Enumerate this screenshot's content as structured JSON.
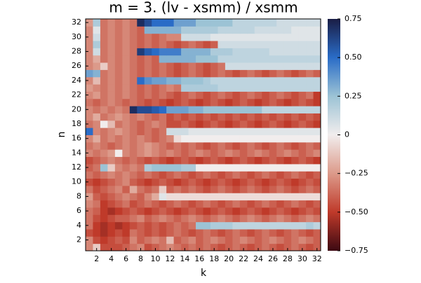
{
  "chart_data": {
    "type": "heatmap",
    "title": "m = 3. (lv - xsmm) / xsmm",
    "x_label": "k",
    "y_label": "n",
    "xlim": [
      0.5,
      32.5
    ],
    "ylim": [
      0.5,
      32.5
    ],
    "xticks": [
      2,
      4,
      6,
      8,
      10,
      12,
      14,
      16,
      18,
      20,
      22,
      24,
      26,
      28,
      30,
      32
    ],
    "yticks": [
      2,
      4,
      6,
      8,
      10,
      12,
      14,
      16,
      18,
      20,
      22,
      24,
      26,
      28,
      30,
      32
    ],
    "clim": [
      -0.75,
      0.75
    ],
    "cticks": [
      {
        "value": -0.75,
        "label": "−0.75"
      },
      {
        "value": -0.5,
        "label": "−0.50"
      },
      {
        "value": -0.25,
        "label": "−0.25"
      },
      0,
      0.25,
      {
        "value": 0.5,
        "label": "0.50"
      },
      0.75
    ],
    "colorscale": [
      "#3c0912",
      "#bf3a2a",
      "#dc9a8a",
      "#f1eded",
      "#9cc3d5",
      "#2a6cc7",
      "#1a1d45"
    ],
    "z": [
      [
        -0.3,
        -0.1,
        -0.45,
        -0.45,
        -0.45,
        -0.4,
        -0.35,
        -0.3,
        -0.45,
        -0.4,
        -0.35,
        -0.3,
        -0.35,
        -0.4,
        -0.35,
        -0.4,
        -0.35,
        -0.4,
        -0.45,
        -0.4,
        -0.35,
        -0.4,
        -0.45,
        -0.4,
        -0.35,
        -0.4,
        -0.45,
        -0.4,
        -0.35,
        -0.4,
        -0.45,
        -0.4
      ],
      [
        -0.3,
        -0.45,
        -0.5,
        -0.45,
        -0.4,
        -0.45,
        -0.3,
        -0.4,
        -0.35,
        -0.3,
        -0.35,
        -0.15,
        -0.4,
        -0.35,
        -0.3,
        -0.4,
        -0.35,
        -0.3,
        -0.35,
        -0.4,
        -0.35,
        -0.3,
        -0.35,
        -0.4,
        -0.35,
        -0.3,
        -0.35,
        -0.4,
        -0.35,
        -0.3,
        -0.35,
        -0.4
      ],
      [
        -0.45,
        -0.5,
        -0.55,
        -0.5,
        -0.45,
        -0.5,
        -0.35,
        -0.4,
        -0.45,
        -0.4,
        -0.45,
        -0.4,
        -0.35,
        -0.4,
        -0.45,
        -0.4,
        -0.35,
        -0.4,
        -0.45,
        -0.4,
        -0.35,
        -0.4,
        -0.45,
        -0.4,
        -0.35,
        -0.4,
        -0.45,
        -0.4,
        -0.35,
        -0.4,
        -0.45,
        -0.4
      ],
      [
        -0.35,
        -0.5,
        -0.55,
        -0.5,
        -0.55,
        -0.5,
        -0.45,
        -0.4,
        -0.45,
        -0.4,
        -0.45,
        -0.4,
        -0.35,
        -0.4,
        -0.35,
        0.25,
        0.25,
        0.2,
        0.2,
        0.2,
        0.15,
        0.15,
        0.15,
        0.15,
        0.15,
        0.15,
        0.15,
        0.15,
        0.15,
        0.15,
        0.2,
        0.15
      ],
      [
        -0.35,
        -0.45,
        -0.5,
        -0.45,
        -0.4,
        -0.4,
        -0.35,
        -0.3,
        -0.4,
        -0.35,
        -0.3,
        -0.35,
        -0.4,
        -0.35,
        -0.3,
        -0.35,
        -0.4,
        -0.35,
        -0.3,
        -0.35,
        -0.4,
        -0.35,
        -0.3,
        -0.35,
        -0.4,
        -0.35,
        -0.3,
        -0.35,
        -0.4,
        -0.35,
        -0.3,
        -0.35
      ],
      [
        -0.35,
        -0.4,
        -0.5,
        -0.55,
        -0.5,
        -0.45,
        -0.4,
        -0.45,
        -0.5,
        -0.45,
        -0.4,
        -0.45,
        -0.5,
        -0.45,
        -0.4,
        -0.45,
        -0.5,
        -0.45,
        -0.4,
        -0.45,
        -0.5,
        -0.45,
        -0.4,
        -0.45,
        -0.5,
        -0.45,
        -0.4,
        -0.45,
        -0.5,
        -0.45,
        -0.4,
        -0.45
      ],
      [
        -0.3,
        -0.35,
        -0.5,
        -0.45,
        -0.4,
        -0.35,
        -0.45,
        -0.4,
        -0.35,
        -0.4,
        -0.45,
        -0.4,
        -0.35,
        -0.4,
        -0.45,
        -0.4,
        -0.35,
        -0.4,
        -0.45,
        -0.4,
        -0.35,
        -0.4,
        -0.45,
        -0.4,
        -0.35,
        -0.4,
        -0.45,
        -0.4,
        -0.35,
        -0.4,
        -0.45,
        -0.4
      ],
      [
        -0.25,
        -0.4,
        -0.45,
        -0.4,
        -0.35,
        -0.3,
        -0.35,
        -0.4,
        -0.3,
        -0.2,
        0.05,
        -0.05,
        -0.05,
        -0.05,
        -0.05,
        -0.05,
        -0.05,
        -0.05,
        -0.05,
        -0.05,
        -0.05,
        -0.05,
        -0.05,
        -0.05,
        -0.05,
        -0.05,
        -0.05,
        -0.05,
        -0.05,
        -0.05,
        -0.05,
        -0.05
      ],
      [
        -0.35,
        -0.45,
        -0.4,
        -0.35,
        -0.3,
        -0.4,
        -0.2,
        -0.35,
        -0.4,
        -0.35,
        -0.1,
        -0.4,
        -0.35,
        -0.4,
        -0.35,
        -0.4,
        -0.45,
        -0.4,
        -0.35,
        -0.4,
        -0.45,
        -0.4,
        -0.35,
        -0.4,
        -0.45,
        -0.4,
        -0.35,
        -0.4,
        -0.45,
        -0.4,
        -0.35,
        -0.4
      ],
      [
        -0.45,
        -0.5,
        -0.45,
        -0.4,
        -0.35,
        -0.3,
        -0.4,
        -0.45,
        -0.5,
        -0.45,
        -0.4,
        -0.45,
        -0.5,
        -0.45,
        -0.4,
        -0.45,
        -0.5,
        -0.45,
        -0.4,
        -0.45,
        -0.5,
        -0.45,
        -0.4,
        -0.45,
        -0.5,
        -0.45,
        -0.4,
        -0.45,
        -0.5,
        -0.45,
        -0.4,
        -0.45
      ],
      [
        -0.35,
        -0.4,
        -0.35,
        -0.3,
        -0.35,
        -0.3,
        -0.35,
        -0.4,
        -0.35,
        -0.4,
        -0.45,
        -0.4,
        -0.35,
        -0.4,
        -0.45,
        -0.4,
        -0.35,
        -0.4,
        -0.45,
        -0.4,
        -0.35,
        -0.4,
        -0.45,
        -0.4,
        -0.35,
        -0.4,
        -0.45,
        -0.4,
        -0.35,
        -0.4,
        -0.45,
        -0.4
      ],
      [
        -0.4,
        -0.35,
        0.25,
        -0.1,
        -0.3,
        -0.35,
        -0.3,
        -0.35,
        0.2,
        0.25,
        0.25,
        0.25,
        0.25,
        0.2,
        0.2,
        0.0,
        0.0,
        0.0,
        0.0,
        0.0,
        0.0,
        0.0,
        0.0,
        0.0,
        0.0,
        0.0,
        0.0,
        0.0,
        0.0,
        0.0,
        0.0,
        0.0
      ],
      [
        -0.45,
        -0.4,
        -0.35,
        -0.3,
        -0.35,
        -0.4,
        -0.35,
        -0.4,
        -0.45,
        -0.4,
        -0.45,
        -0.5,
        -0.45,
        -0.4,
        -0.45,
        -0.5,
        -0.45,
        -0.4,
        -0.45,
        -0.5,
        -0.45,
        -0.4,
        -0.45,
        -0.5,
        -0.45,
        -0.4,
        -0.45,
        -0.5,
        -0.45,
        -0.4,
        -0.45,
        -0.5
      ],
      [
        -0.3,
        -0.35,
        -0.3,
        -0.25,
        0.0,
        -0.3,
        -0.35,
        -0.3,
        -0.25,
        -0.3,
        -0.35,
        -0.3,
        -0.35,
        -0.4,
        -0.35,
        -0.3,
        -0.35,
        -0.4,
        -0.35,
        -0.3,
        -0.35,
        -0.4,
        -0.35,
        -0.3,
        -0.35,
        -0.4,
        -0.35,
        -0.3,
        -0.35,
        -0.4,
        -0.35,
        -0.3
      ],
      [
        -0.35,
        -0.3,
        -0.35,
        -0.4,
        -0.35,
        -0.3,
        -0.35,
        -0.3,
        -0.25,
        -0.3,
        -0.35,
        -0.4,
        -0.35,
        -0.4,
        -0.35,
        -0.4,
        -0.45,
        -0.4,
        -0.35,
        -0.4,
        -0.45,
        -0.4,
        -0.35,
        -0.4,
        -0.45,
        -0.4,
        -0.35,
        -0.4,
        -0.45,
        -0.4,
        -0.35,
        -0.4
      ],
      [
        -0.3,
        -0.2,
        -0.35,
        -0.3,
        -0.35,
        -0.3,
        -0.35,
        -0.3,
        -0.35,
        -0.4,
        -0.35,
        -0.3,
        -0.05,
        0.0,
        0.0,
        0.0,
        0.0,
        0.0,
        0.0,
        0.0,
        0.0,
        0.0,
        0.0,
        0.0,
        0.0,
        0.0,
        0.0,
        0.0,
        0.0,
        0.0,
        0.0,
        0.0
      ],
      [
        0.5,
        -0.3,
        -0.35,
        -0.3,
        -0.25,
        -0.3,
        -0.35,
        -0.4,
        -0.35,
        -0.4,
        -0.35,
        0.1,
        0.1,
        0.1,
        0.05,
        0.05,
        0.05,
        0.05,
        0.05,
        0.05,
        0.05,
        0.05,
        0.05,
        0.05,
        0.05,
        0.05,
        0.05,
        0.05,
        0.05,
        0.05,
        0.05,
        0.05
      ],
      [
        -0.35,
        -0.3,
        0.0,
        -0.15,
        -0.35,
        -0.3,
        -0.35,
        -0.4,
        -0.35,
        -0.3,
        -0.35,
        -0.45,
        -0.45,
        -0.4,
        -0.45,
        -0.5,
        -0.45,
        -0.4,
        -0.45,
        -0.5,
        -0.45,
        -0.4,
        -0.45,
        -0.5,
        -0.45,
        -0.4,
        -0.45,
        -0.5,
        -0.45,
        -0.4,
        -0.45,
        -0.5
      ],
      [
        -0.3,
        -0.2,
        -0.35,
        -0.3,
        -0.25,
        -0.3,
        -0.35,
        -0.3,
        -0.35,
        -0.4,
        -0.35,
        -0.45,
        -0.4,
        -0.45,
        -0.4,
        -0.45,
        -0.4,
        -0.45,
        -0.4,
        -0.45,
        -0.4,
        -0.45,
        -0.4,
        -0.45,
        -0.4,
        -0.45,
        -0.4,
        -0.45,
        -0.4,
        -0.45,
        -0.4,
        -0.45
      ],
      [
        -0.3,
        -0.35,
        -0.3,
        -0.35,
        -0.3,
        -0.35,
        0.7,
        0.6,
        0.6,
        0.55,
        0.5,
        0.35,
        0.35,
        0.35,
        0.3,
        0.3,
        0.25,
        0.25,
        0.25,
        0.25,
        0.25,
        0.25,
        0.25,
        0.25,
        0.15,
        0.15,
        0.15,
        0.15,
        0.15,
        0.15,
        0.15,
        0.15
      ],
      [
        -0.35,
        -0.4,
        -0.35,
        -0.3,
        -0.35,
        -0.4,
        -0.35,
        -0.4,
        -0.45,
        -0.4,
        -0.45,
        -0.5,
        -0.45,
        -0.4,
        -0.45,
        -0.5,
        -0.45,
        -0.4,
        -0.45,
        -0.5,
        -0.45,
        -0.4,
        -0.45,
        -0.5,
        -0.45,
        -0.4,
        -0.45,
        -0.5,
        -0.45,
        -0.4,
        -0.45,
        -0.5
      ],
      [
        -0.3,
        -0.25,
        -0.35,
        -0.3,
        -0.35,
        -0.3,
        -0.35,
        -0.4,
        -0.35,
        -0.4,
        -0.35,
        -0.4,
        -0.45,
        -0.4,
        -0.35,
        -0.4,
        -0.45,
        -0.4,
        -0.35,
        -0.4,
        -0.45,
        -0.4,
        -0.35,
        -0.4,
        -0.45,
        -0.4,
        -0.35,
        -0.4,
        -0.45,
        -0.4,
        -0.35,
        -0.5
      ],
      [
        -0.25,
        -0.3,
        -0.35,
        -0.3,
        -0.35,
        -0.3,
        -0.35,
        -0.4,
        -0.35,
        -0.4,
        -0.35,
        -0.3,
        -0.35,
        0.2,
        0.2,
        0.2,
        0.2,
        0.2,
        0.15,
        0.15,
        0.15,
        0.15,
        0.15,
        0.15,
        0.15,
        0.15,
        0.15,
        0.15,
        0.15,
        0.15,
        0.15,
        0.15
      ],
      [
        -0.3,
        -0.15,
        -0.35,
        -0.3,
        -0.35,
        -0.3,
        -0.35,
        0.5,
        0.4,
        0.35,
        0.35,
        0.3,
        0.3,
        0.25,
        0.25,
        0.25,
        0.2,
        0.15,
        0.15,
        0.15,
        0.15,
        0.15,
        0.15,
        0.15,
        0.15,
        0.15,
        0.15,
        0.15,
        0.15,
        0.15,
        0.15,
        0.15
      ],
      [
        0.35,
        0.3,
        -0.35,
        -0.3,
        -0.35,
        -0.3,
        -0.35,
        -0.4,
        -0.35,
        -0.4,
        -0.35,
        -0.4,
        -0.45,
        -0.4,
        -0.35,
        -0.4,
        -0.45,
        -0.4,
        -0.35,
        -0.4,
        -0.45,
        -0.4,
        -0.35,
        -0.4,
        -0.45,
        -0.4,
        -0.35,
        -0.4,
        -0.45,
        -0.4,
        -0.35,
        -0.4
      ],
      [
        -0.3,
        -0.25,
        -0.1,
        -0.3,
        -0.35,
        -0.3,
        -0.35,
        -0.4,
        -0.35,
        -0.4,
        -0.35,
        -0.4,
        -0.45,
        -0.4,
        -0.35,
        -0.4,
        -0.45,
        -0.4,
        -0.35,
        0.1,
        0.1,
        0.1,
        0.1,
        0.1,
        0.1,
        0.1,
        0.1,
        0.1,
        0.1,
        0.1,
        0.1,
        0.1
      ],
      [
        -0.3,
        -0.2,
        -0.35,
        -0.3,
        -0.35,
        -0.3,
        -0.35,
        -0.4,
        -0.35,
        -0.4,
        0.3,
        0.3,
        0.3,
        0.3,
        0.3,
        0.25,
        0.25,
        0.25,
        0.15,
        0.15,
        0.15,
        0.15,
        0.15,
        0.15,
        0.15,
        0.15,
        0.15,
        0.15,
        0.15,
        0.15,
        0.15,
        0.15
      ],
      [
        -0.3,
        0.1,
        -0.35,
        -0.3,
        -0.35,
        -0.3,
        -0.35,
        0.65,
        0.55,
        0.5,
        0.45,
        0.45,
        0.45,
        0.3,
        0.3,
        0.3,
        0.3,
        0.2,
        0.2,
        0.2,
        0.15,
        0.15,
        0.15,
        0.15,
        0.15,
        0.1,
        0.1,
        0.1,
        0.1,
        0.1,
        0.1,
        0.1
      ],
      [
        -0.3,
        0.2,
        -0.35,
        -0.3,
        -0.35,
        -0.3,
        -0.35,
        -0.4,
        -0.35,
        -0.4,
        -0.35,
        -0.4,
        -0.45,
        -0.4,
        -0.35,
        -0.4,
        -0.45,
        -0.4,
        0.1,
        0.1,
        0.1,
        0.1,
        0.1,
        0.1,
        0.1,
        0.1,
        0.1,
        0.1,
        0.1,
        0.1,
        0.1,
        0.1
      ],
      [
        -0.3,
        0.1,
        -0.35,
        -0.3,
        -0.35,
        -0.3,
        -0.35,
        -0.4,
        -0.35,
        -0.4,
        -0.35,
        -0.3,
        -0.3,
        0.1,
        0.1,
        0.1,
        0.1,
        0.05,
        0.05,
        0.05,
        0.05,
        0.05,
        0.05,
        0.05,
        0.05,
        0.05,
        0.05,
        0.05,
        0.05,
        0.05,
        0.05,
        0.05
      ],
      [
        -0.3,
        0.05,
        -0.35,
        -0.3,
        -0.35,
        -0.3,
        -0.35,
        -0.4,
        0.3,
        0.3,
        0.3,
        0.3,
        0.3,
        0.2,
        0.2,
        0.2,
        0.2,
        0.2,
        0.15,
        0.15,
        0.15,
        0.15,
        0.15,
        0.1,
        0.1,
        0.1,
        0.1,
        0.1,
        0.05,
        0.05,
        0.05,
        0.05
      ],
      [
        -0.25,
        0.2,
        -0.35,
        -0.3,
        -0.35,
        -0.3,
        -0.35,
        0.7,
        0.6,
        0.5,
        0.5,
        0.5,
        0.35,
        0.35,
        0.35,
        0.25,
        0.25,
        0.25,
        0.25,
        0.25,
        0.15,
        0.15,
        0.15,
        0.15,
        0.15,
        0.15,
        0.1,
        0.1,
        0.1,
        0.1,
        0.1,
        0.1
      ]
    ]
  }
}
